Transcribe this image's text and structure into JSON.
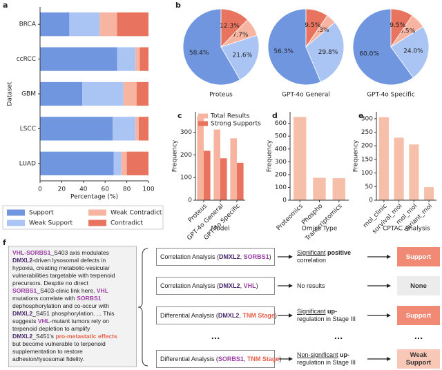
{
  "chart_data": [
    {
      "type": "stacked-barh",
      "panel": "a",
      "categories": [
        "BRCA",
        "ccRCC",
        "GBM",
        "LSCC",
        "LUAD"
      ],
      "series": [
        {
          "name": "Support",
          "color": "#7196e0",
          "values": [
            27,
            71,
            39,
            67,
            68
          ]
        },
        {
          "name": "Weak Support",
          "color": "#aac5f4",
          "values": [
            28,
            17,
            38,
            21,
            7
          ]
        },
        {
          "name": "Weak Contradict",
          "color": "#f7b5a1",
          "values": [
            16,
            4,
            12,
            3,
            5
          ]
        },
        {
          "name": "Contradict",
          "color": "#e8735f",
          "values": [
            29,
            8,
            11,
            9,
            20
          ]
        }
      ],
      "xlim": [
        0,
        100
      ],
      "xticks": [
        0,
        20,
        40,
        60,
        80,
        100
      ],
      "xlabel": "Percentage (%)",
      "ylabel": "Dataset"
    },
    {
      "type": "pie",
      "panel": "b",
      "title": "Proteus",
      "values": [
        58.4,
        21.6,
        7.7,
        12.3
      ],
      "value_labels": [
        "58.4%",
        "21.6%",
        "7.7%",
        "12.3%"
      ],
      "colors": [
        "#7196e0",
        "#aac5f4",
        "#f7b5a1",
        "#e8735f"
      ]
    },
    {
      "type": "pie",
      "title": "GPT-4o General",
      "values": [
        56.3,
        29.8,
        4.3,
        9.5
      ],
      "value_labels": [
        "56.3%",
        "29.8%",
        "4.3%",
        "9.5%"
      ],
      "colors": [
        "#7196e0",
        "#aac5f4",
        "#f7b5a1",
        "#e8735f"
      ]
    },
    {
      "type": "pie",
      "title": "GPT-4o Specific",
      "values": [
        60.0,
        24.0,
        6.5,
        9.5
      ],
      "value_labels": [
        "60.0%",
        "24.0%",
        "6.5%",
        "9.5%"
      ],
      "colors": [
        "#7196e0",
        "#aac5f4",
        "#f7b5a1",
        "#e8735f"
      ]
    },
    {
      "type": "grouped-bar",
      "panel": "c",
      "categories": [
        "Proteus",
        "GPT-4o General",
        "GPT-4o Specific"
      ],
      "series": [
        {
          "name": "Total Results",
          "color": "#f7b5a1",
          "values": [
            370,
            312,
            273
          ]
        },
        {
          "name": "Strong Supports",
          "color": "#e8735f",
          "values": [
            218,
            185,
            165
          ]
        }
      ],
      "ylim": [
        0,
        390
      ],
      "yticks": [
        0,
        100,
        200,
        300
      ],
      "xlabel": "Model",
      "ylabel": "Frequency",
      "legend": "upper right"
    },
    {
      "type": "bar",
      "panel": "d",
      "categories": [
        "Proteomics",
        "Phospho",
        "Transcriptomics"
      ],
      "values": [
        650,
        175,
        172
      ],
      "color": "#f5bfa9",
      "ylim": [
        0,
        690
      ],
      "yticks": [
        0,
        100,
        200,
        300,
        400,
        500,
        600
      ],
      "xlabel": "Omics Type",
      "ylabel": "Frequency"
    },
    {
      "type": "bar",
      "panel": "e",
      "categories": [
        "mol_clinic",
        "survival_mol",
        "mol_mol",
        "variant_mol"
      ],
      "values": [
        305,
        230,
        205,
        48
      ],
      "color": "#f5bfa9",
      "ylim": [
        0,
        325
      ],
      "yticks": [
        0,
        50,
        100,
        150,
        200,
        250,
        300
      ],
      "xlabel": "CPTAC Analysis",
      "ylabel": "Frequency"
    }
  ],
  "figure_f": {
    "panel": "f",
    "text_lines": [
      [
        {
          "text": "VHL",
          "color": "#9b3fa5",
          "bold": true
        },
        {
          "text": "-"
        },
        {
          "text": "SORBS1",
          "color": "#9b3fa5",
          "bold": true
        },
        {
          "text": "_S403 axis modulates"
        }
      ],
      [
        {
          "text": "DMXL2",
          "color": "#4b2a6b",
          "bold": true
        },
        {
          "text": "-driven lysosomal defects in"
        }
      ],
      [
        {
          "text": "hypoxia, creating metabolic-vesicular"
        }
      ],
      [
        {
          "text": "vulnerabilities targetable with terpenoid"
        }
      ],
      [
        {
          "text": "precursors. Despite no direct"
        }
      ],
      [
        {
          "text": "SORBS1",
          "color": "#9b3fa5",
          "bold": true
        },
        {
          "text": "_S403-clinic link here, "
        },
        {
          "text": "VHL",
          "color": "#9b3fa5",
          "bold": true
        }
      ],
      [
        {
          "text": "mutations correlate with "
        },
        {
          "text": "SORBS1",
          "color": "#9b3fa5",
          "bold": true
        }
      ],
      [
        {
          "text": "dephosphorylation and co-occur with"
        }
      ],
      [
        {
          "text": "DMXL2",
          "color": "#4b2a6b",
          "bold": true
        },
        {
          "text": "_S451 phosphorylation. ... This"
        }
      ],
      [
        {
          "text": "suggests "
        },
        {
          "text": "VHL",
          "color": "#9b3fa5",
          "bold": true
        },
        {
          "text": "-mutant tumors rely on"
        }
      ],
      [
        {
          "text": "terpenoid depletion to amplify"
        }
      ],
      [
        {
          "text": "DMXL2",
          "color": "#4b2a6b",
          "bold": true
        },
        {
          "text": "_S451's "
        },
        {
          "text": "pro-metastatic effects",
          "color": "#e8604a",
          "bold": true
        }
      ],
      [
        {
          "text": "but become vulnerable to terpenoid"
        }
      ],
      [
        {
          "text": "supplementation to restore"
        }
      ],
      [
        {
          "text": "adhesion/lysosomal fidelity."
        }
      ]
    ],
    "rows": [
      {
        "analysis": [
          {
            "text": "Correlation Analysis ("
          },
          {
            "text": "DMXL2",
            "color": "#4b2a6b",
            "bold": true
          },
          {
            "text": ", "
          },
          {
            "text": "SORBS1",
            "color": "#9b3fa5",
            "bold": true
          },
          {
            "text": ")"
          }
        ],
        "result": [
          [
            {
              "text": "Significant",
              "underline": true
            },
            {
              "text": " positive",
              "bold": true
            }
          ],
          [
            {
              "text": "correlation"
            }
          ]
        ],
        "verdict": "Support",
        "verdict_color": "#f08a74",
        "verdict_text_color": "#ffffff"
      },
      {
        "analysis": [
          {
            "text": "Correlation Analysis ("
          },
          {
            "text": "DMXL2",
            "color": "#4b2a6b",
            "bold": true
          },
          {
            "text": ", "
          },
          {
            "text": "VHL",
            "color": "#9b3fa5",
            "bold": true
          },
          {
            "text": ")"
          }
        ],
        "result": [
          [
            {
              "text": "No results"
            }
          ]
        ],
        "verdict": "None",
        "verdict_color": "#ececec",
        "verdict_text_color": "#333333"
      },
      {
        "analysis": [
          {
            "text": "Differential Analysis ("
          },
          {
            "text": "DMXL2",
            "color": "#4b2a6b",
            "bold": true
          },
          {
            "text": ", "
          },
          {
            "text": "TNM Stage",
            "color": "#e8604a",
            "bold": true
          },
          {
            "text": ")"
          }
        ],
        "result": [
          [
            {
              "text": "Significant",
              "underline": true
            },
            {
              "text": " up-",
              "bold": true
            }
          ],
          [
            {
              "text": "regulation in Stage III"
            }
          ]
        ],
        "verdict": "Support",
        "verdict_color": "#f08a74",
        "verdict_text_color": "#ffffff"
      },
      {
        "analysis": [
          {
            "text": "Differential Analysis ("
          },
          {
            "text": "SORBS1",
            "color": "#9b3fa5",
            "bold": true
          },
          {
            "text": ", "
          },
          {
            "text": "TNM Stage",
            "color": "#e8604a",
            "bold": true
          },
          {
            "text": ")"
          }
        ],
        "result": [
          [
            {
              "text": "Non-significant",
              "underline": true
            },
            {
              "text": " up-",
              "bold": true
            }
          ],
          [
            {
              "text": "regulation in Stage III"
            }
          ]
        ],
        "verdict": "Weak Support",
        "verdict_color": "#f9c7b5",
        "verdict_text_color": "#333333"
      }
    ],
    "ellipsis": [
      "...",
      "...",
      "..."
    ]
  }
}
